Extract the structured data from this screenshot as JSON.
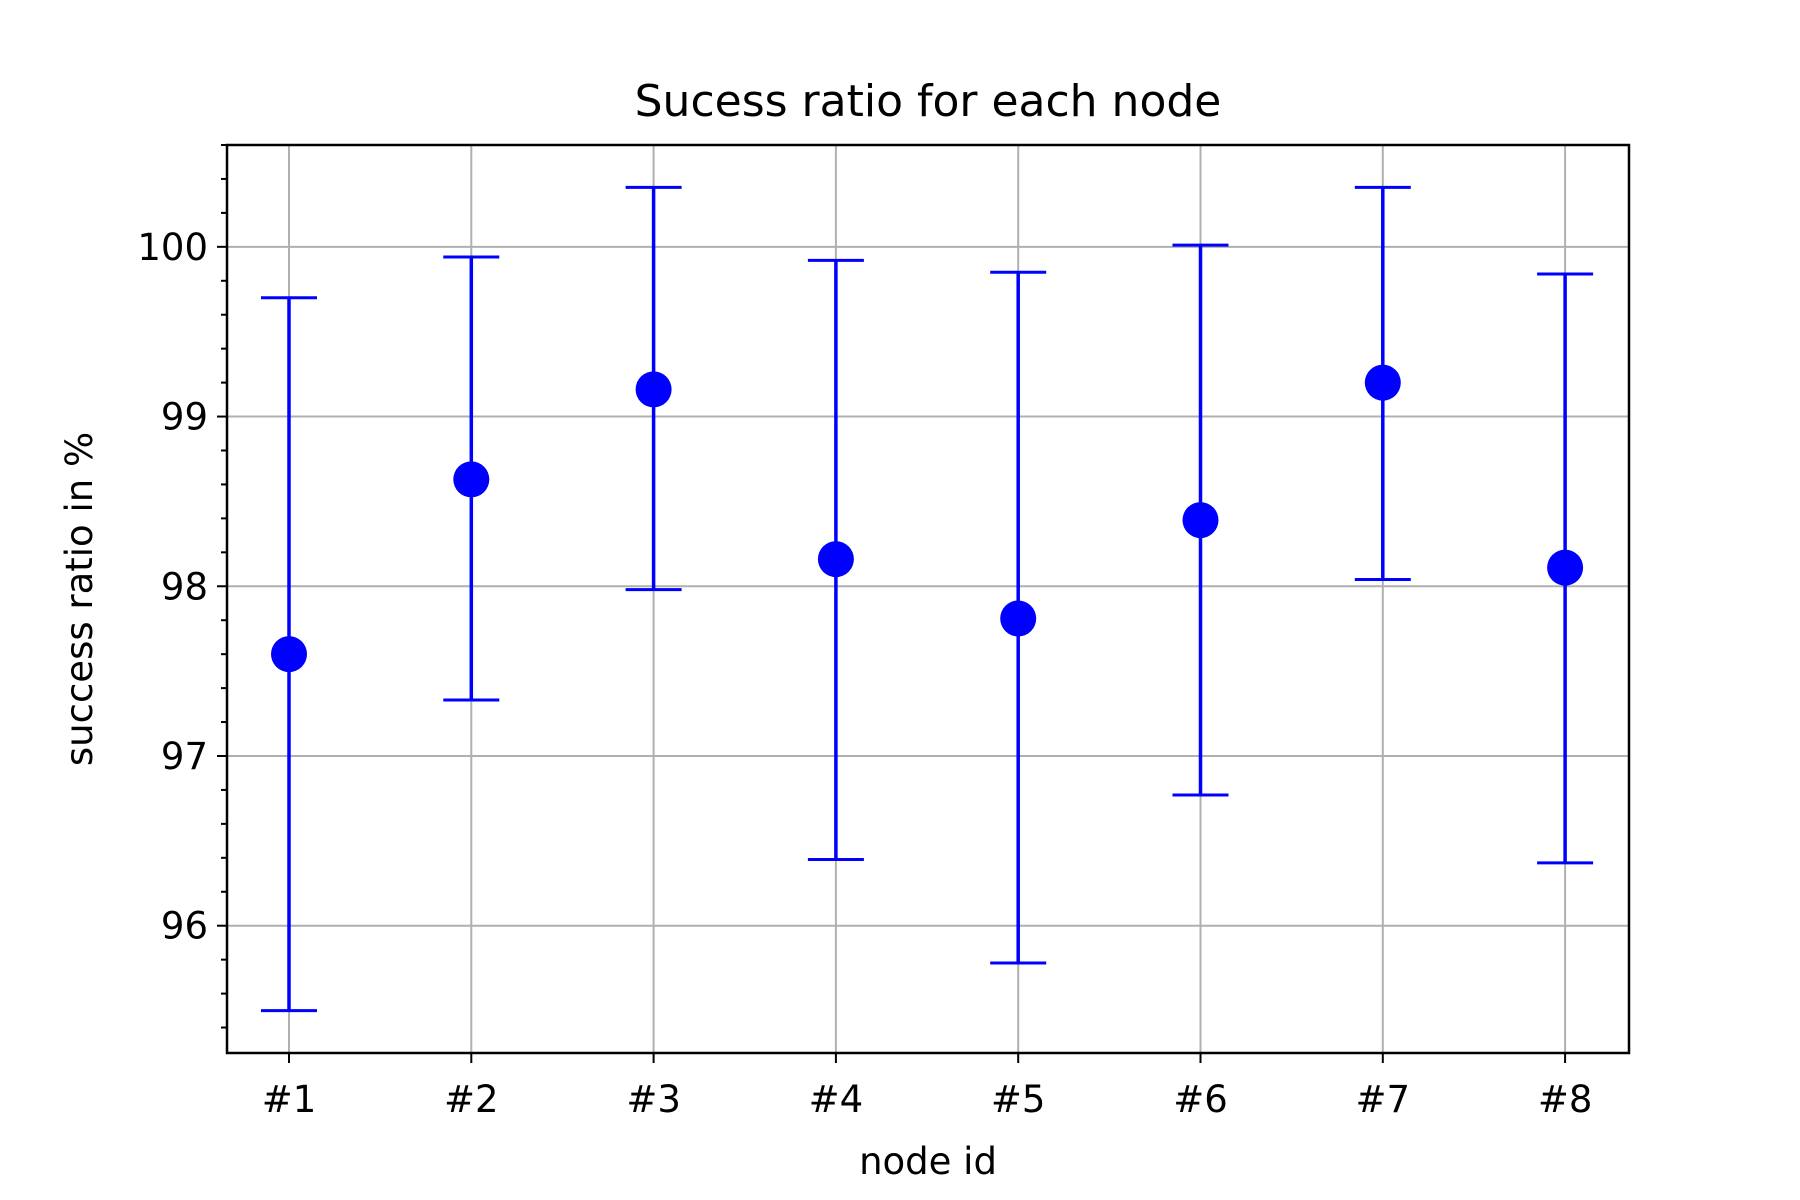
{
  "chart_data": {
    "type": "scatter",
    "title": "Sucess ratio for each node",
    "xlabel": "node id",
    "ylabel": "success ratio in %",
    "categories": [
      "#1",
      "#2",
      "#3",
      "#4",
      "#5",
      "#6",
      "#7",
      "#8"
    ],
    "series": [
      {
        "values": [
          97.6,
          98.63,
          99.16,
          98.16,
          97.81,
          98.39,
          99.2,
          98.11
        ],
        "error_low": [
          95.5,
          97.33,
          97.98,
          96.39,
          95.78,
          96.77,
          98.04,
          96.37
        ],
        "error_high": [
          99.7,
          99.94,
          100.35,
          99.92,
          99.85,
          100.01,
          100.35,
          99.84
        ],
        "color": "#0000ff",
        "marker": "circle"
      }
    ],
    "ylim": [
      95.25,
      100.6
    ],
    "yticks": [
      96,
      97,
      98,
      99,
      100
    ],
    "ytick_labels": [
      "96",
      "97",
      "98",
      "99",
      "100"
    ],
    "grid": true,
    "legend": "none"
  }
}
